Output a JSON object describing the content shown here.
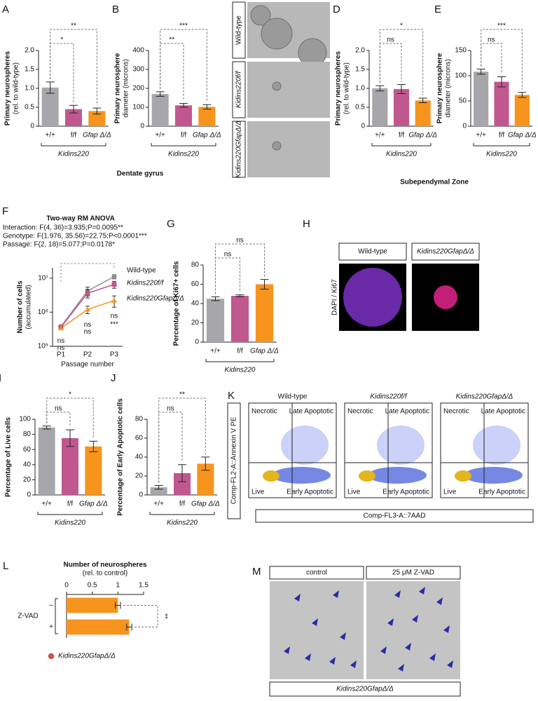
{
  "chart_data": [
    {
      "panel": "A",
      "type": "bar",
      "ylabel": [
        "Primary neurospheres",
        "(rel. to wild-type)"
      ],
      "categories": [
        "+/+",
        "f/f",
        "Gfap Δ/Δ"
      ],
      "values": [
        1.02,
        0.45,
        0.4
      ],
      "errors": [
        0.15,
        0.1,
        0.08
      ],
      "colors": [
        "#a7a7ab",
        "#c0588f",
        "#f7941d"
      ],
      "ylim": [
        0,
        2
      ],
      "yticks": [
        0,
        0.5,
        {
          "value": 1,
          "label": "1.0"
        },
        1.5,
        {
          "value": 2,
          "label": "2.0"
        }
      ],
      "significance": [
        "*",
        "**"
      ],
      "group_label": "Kidins220"
    },
    {
      "panel": "B",
      "type": "bar",
      "ylabel": [
        "Primary neurosphere",
        "diameter (microns)"
      ],
      "categories": [
        "+/+",
        "f/f",
        "Gfap Δ/Δ"
      ],
      "values": [
        170,
        110,
        102
      ],
      "errors": [
        12,
        10,
        12
      ],
      "colors": [
        "#a7a7ab",
        "#c0588f",
        "#f7941d"
      ],
      "ylim": [
        0,
        400
      ],
      "yticks": [
        0,
        100,
        200,
        300,
        400
      ],
      "significance": [
        "**",
        "***"
      ],
      "group_label": "Kidins220"
    },
    {
      "panel": "D",
      "type": "bar",
      "ylabel": [
        "Primary neurospheres",
        "(rel. to wild-type)"
      ],
      "categories": [
        "+/+",
        "f/f",
        "Gfap Δ/Δ"
      ],
      "values": [
        1.0,
        0.98,
        0.68
      ],
      "errors": [
        0.07,
        0.12,
        0.06
      ],
      "colors": [
        "#a7a7ab",
        "#c0588f",
        "#f7941d"
      ],
      "ylim": [
        0,
        2
      ],
      "yticks": [
        0,
        0.5,
        {
          "value": 1,
          "label": "1.0"
        },
        1.5,
        {
          "value": 2,
          "label": "2.0"
        }
      ],
      "significance": [
        "ns",
        "*"
      ],
      "group_label": "Kidins220"
    },
    {
      "panel": "E",
      "type": "bar",
      "ylabel": [
        "Primary neurosphere",
        "diameter (microns)"
      ],
      "categories": [
        "+/+",
        "f/f",
        "Gfap Δ/Δ"
      ],
      "values": [
        108,
        88,
        62
      ],
      "errors": [
        5,
        10,
        5
      ],
      "colors": [
        "#a7a7ab",
        "#c0588f",
        "#f7941d"
      ],
      "ylim": [
        0,
        150
      ],
      "yticks": [
        0,
        50,
        100,
        150
      ],
      "significance": [
        "ns",
        "***"
      ],
      "group_label": "Kidins220"
    },
    {
      "panel": "F",
      "type": "line",
      "stats_title": "Two-way RM ANOVA",
      "stats": [
        "Interaction: F(4, 36)=3.935;P=0.0095**",
        "Genotype: F(1.976, 35.56)=22.75;P<0.0001***",
        "Passage: F(2, 18)=5.077;P=0.0178*"
      ],
      "ylabel": [
        "Number of cells",
        "(accumulated)"
      ],
      "xlabel": "Passage number",
      "categories": [
        "P1",
        "P2",
        "P3"
      ],
      "log_scale": true,
      "ylim": [
        100000,
        20000000
      ],
      "yticks": [
        {
          "value": 100000,
          "label": "10⁵"
        },
        {
          "value": 1000000,
          "label": "10⁶"
        },
        {
          "value": 10000000,
          "label": "10⁷"
        }
      ],
      "series": [
        {
          "name": "Wild-type",
          "color": "#8f8f93",
          "values": [
            380000,
            4200000,
            11000000
          ],
          "errors": [
            40000,
            1200000,
            1500000
          ]
        },
        {
          "name": "Kidins220f/f",
          "color": "#c0588f",
          "values": [
            360000,
            3600000,
            6500000
          ],
          "errors": [
            40000,
            1000000,
            1500000
          ]
        },
        {
          "name": "Kidins220GfapΔ/Δ",
          "color": "#f7941d",
          "values": [
            340000,
            1200000,
            2200000
          ],
          "errors": [
            30000,
            300000,
            800000
          ]
        }
      ],
      "annotations": [
        "ns",
        "ns",
        "ns",
        "ns",
        "ns",
        "***"
      ]
    },
    {
      "panel": "G",
      "type": "bar",
      "ylabel": [
        "Percentage of Ki67+ cells"
      ],
      "categories": [
        "+/+",
        "f/f",
        "Gfap Δ/Δ"
      ],
      "values": [
        45,
        48,
        60
      ],
      "errors": [
        2,
        1,
        5
      ],
      "colors": [
        "#a7a7ab",
        "#c0588f",
        "#f7941d"
      ],
      "ylim": [
        0,
        80
      ],
      "yticks": [
        0,
        20,
        40,
        60,
        80
      ],
      "significance": [
        "ns",
        "ns"
      ],
      "group_label": "Kidins220"
    },
    {
      "panel": "I",
      "type": "bar",
      "ylabel": [
        "Percentage of Live cells"
      ],
      "categories": [
        "+/+",
        "f/f",
        "Gfap Δ/Δ"
      ],
      "values": [
        89,
        75,
        64
      ],
      "errors": [
        2,
        11,
        7
      ],
      "colors": [
        "#a7a7ab",
        "#c0588f",
        "#f7941d"
      ],
      "ylim": [
        0,
        100
      ],
      "yticks": [
        0,
        20,
        40,
        60,
        80,
        100
      ],
      "significance": [
        "ns",
        "*"
      ],
      "group_label": "Kidins220"
    },
    {
      "panel": "J",
      "type": "bar",
      "ylabel": [
        "Percentage of Early Apoptotic cells"
      ],
      "categories": [
        "+/+",
        "f/f",
        "Gfap Δ/Δ"
      ],
      "values": [
        8,
        23,
        33
      ],
      "errors": [
        2,
        9,
        7
      ],
      "colors": [
        "#a7a7ab",
        "#c0588f",
        "#f7941d"
      ],
      "ylim": [
        0,
        80
      ],
      "yticks": [
        0,
        20,
        40,
        60,
        80
      ],
      "significance": [
        "ns",
        "**"
      ],
      "group_label": "Kidins220"
    },
    {
      "panel": "L",
      "type": "hbar",
      "title": [
        "Number of neurospheres",
        "(rel. to control)"
      ],
      "categories": [
        "–",
        "+"
      ],
      "values": [
        1.0,
        1.22
      ],
      "errors": [
        0.05,
        0.05
      ],
      "color": "#f7941d",
      "xlim": [
        0,
        1.5
      ],
      "xticks": [
        0,
        0.5,
        1,
        1.5
      ],
      "group_label": "Z-VAD",
      "significance": "**",
      "legend": "Kidins220GfapΔ/Δ"
    }
  ],
  "captions": [
    "Dentate gyrus",
    "Subependymal Zone"
  ],
  "image_panels": [
    {
      "panel": "C",
      "labels": [
        "Wild-type",
        "Kidins220f/f",
        "Kidins220GfapΔ/Δ"
      ]
    },
    {
      "panel": "H",
      "labels": [
        "Wild-type",
        "Kidins220GfapΔ/Δ"
      ],
      "stain": "DAPI / Ki67"
    },
    {
      "panel": "K",
      "labels": [
        "Wild-type",
        "Kidins220f/f",
        "Kidins220GfapΔ/Δ"
      ],
      "quadrants": [
        "Necrotic",
        "Late Apoptotic",
        "Live",
        "Early Apoptotic"
      ],
      "ylabel": "Comp-FL2-A::Annexin V PE",
      "xlabel": "Comp-FL3-A::7AAD"
    },
    {
      "panel": "M",
      "labels": [
        "control",
        "25 μM Z-VAD"
      ],
      "footer": "Kidins220GfapΔ/Δ"
    }
  ]
}
